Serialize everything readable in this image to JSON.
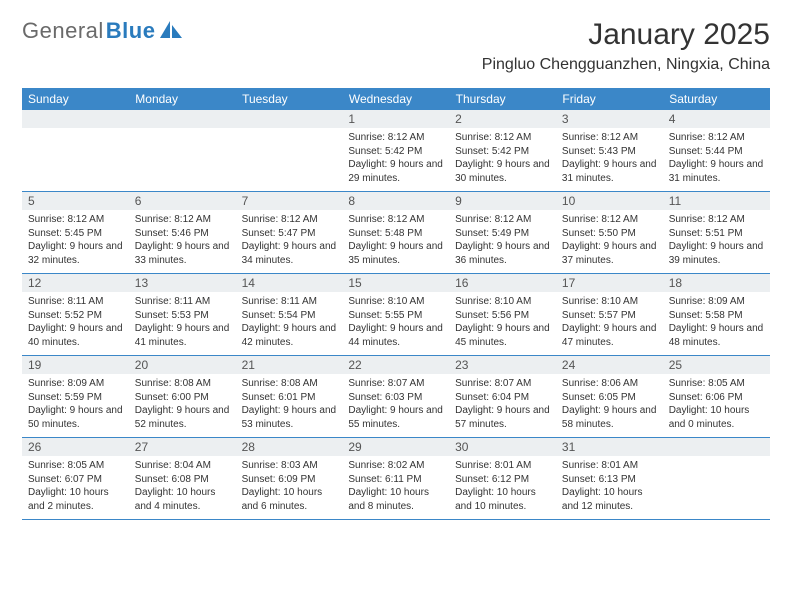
{
  "logo": {
    "text1": "General",
    "text2": "Blue"
  },
  "title": "January 2025",
  "location": "Pingluo Chengguanzhen, Ningxia, China",
  "colors": {
    "header_bg": "#3b87c8",
    "header_text": "#ffffff",
    "daynum_bg": "#eceff1",
    "border": "#3b87c8",
    "logo_gray": "#6a6a6a",
    "logo_blue": "#2a7bbd"
  },
  "fonts": {
    "title_size": 30,
    "location_size": 16,
    "header_size": 12,
    "daynum_size": 12,
    "body_size": 10
  },
  "weekdays": [
    "Sunday",
    "Monday",
    "Tuesday",
    "Wednesday",
    "Thursday",
    "Friday",
    "Saturday"
  ],
  "weeks": [
    [
      {
        "n": "",
        "t": ""
      },
      {
        "n": "",
        "t": ""
      },
      {
        "n": "",
        "t": ""
      },
      {
        "n": "1",
        "t": "Sunrise: 8:12 AM\nSunset: 5:42 PM\nDaylight: 9 hours and 29 minutes."
      },
      {
        "n": "2",
        "t": "Sunrise: 8:12 AM\nSunset: 5:42 PM\nDaylight: 9 hours and 30 minutes."
      },
      {
        "n": "3",
        "t": "Sunrise: 8:12 AM\nSunset: 5:43 PM\nDaylight: 9 hours and 31 minutes."
      },
      {
        "n": "4",
        "t": "Sunrise: 8:12 AM\nSunset: 5:44 PM\nDaylight: 9 hours and 31 minutes."
      }
    ],
    [
      {
        "n": "5",
        "t": "Sunrise: 8:12 AM\nSunset: 5:45 PM\nDaylight: 9 hours and 32 minutes."
      },
      {
        "n": "6",
        "t": "Sunrise: 8:12 AM\nSunset: 5:46 PM\nDaylight: 9 hours and 33 minutes."
      },
      {
        "n": "7",
        "t": "Sunrise: 8:12 AM\nSunset: 5:47 PM\nDaylight: 9 hours and 34 minutes."
      },
      {
        "n": "8",
        "t": "Sunrise: 8:12 AM\nSunset: 5:48 PM\nDaylight: 9 hours and 35 minutes."
      },
      {
        "n": "9",
        "t": "Sunrise: 8:12 AM\nSunset: 5:49 PM\nDaylight: 9 hours and 36 minutes."
      },
      {
        "n": "10",
        "t": "Sunrise: 8:12 AM\nSunset: 5:50 PM\nDaylight: 9 hours and 37 minutes."
      },
      {
        "n": "11",
        "t": "Sunrise: 8:12 AM\nSunset: 5:51 PM\nDaylight: 9 hours and 39 minutes."
      }
    ],
    [
      {
        "n": "12",
        "t": "Sunrise: 8:11 AM\nSunset: 5:52 PM\nDaylight: 9 hours and 40 minutes."
      },
      {
        "n": "13",
        "t": "Sunrise: 8:11 AM\nSunset: 5:53 PM\nDaylight: 9 hours and 41 minutes."
      },
      {
        "n": "14",
        "t": "Sunrise: 8:11 AM\nSunset: 5:54 PM\nDaylight: 9 hours and 42 minutes."
      },
      {
        "n": "15",
        "t": "Sunrise: 8:10 AM\nSunset: 5:55 PM\nDaylight: 9 hours and 44 minutes."
      },
      {
        "n": "16",
        "t": "Sunrise: 8:10 AM\nSunset: 5:56 PM\nDaylight: 9 hours and 45 minutes."
      },
      {
        "n": "17",
        "t": "Sunrise: 8:10 AM\nSunset: 5:57 PM\nDaylight: 9 hours and 47 minutes."
      },
      {
        "n": "18",
        "t": "Sunrise: 8:09 AM\nSunset: 5:58 PM\nDaylight: 9 hours and 48 minutes."
      }
    ],
    [
      {
        "n": "19",
        "t": "Sunrise: 8:09 AM\nSunset: 5:59 PM\nDaylight: 9 hours and 50 minutes."
      },
      {
        "n": "20",
        "t": "Sunrise: 8:08 AM\nSunset: 6:00 PM\nDaylight: 9 hours and 52 minutes."
      },
      {
        "n": "21",
        "t": "Sunrise: 8:08 AM\nSunset: 6:01 PM\nDaylight: 9 hours and 53 minutes."
      },
      {
        "n": "22",
        "t": "Sunrise: 8:07 AM\nSunset: 6:03 PM\nDaylight: 9 hours and 55 minutes."
      },
      {
        "n": "23",
        "t": "Sunrise: 8:07 AM\nSunset: 6:04 PM\nDaylight: 9 hours and 57 minutes."
      },
      {
        "n": "24",
        "t": "Sunrise: 8:06 AM\nSunset: 6:05 PM\nDaylight: 9 hours and 58 minutes."
      },
      {
        "n": "25",
        "t": "Sunrise: 8:05 AM\nSunset: 6:06 PM\nDaylight: 10 hours and 0 minutes."
      }
    ],
    [
      {
        "n": "26",
        "t": "Sunrise: 8:05 AM\nSunset: 6:07 PM\nDaylight: 10 hours and 2 minutes."
      },
      {
        "n": "27",
        "t": "Sunrise: 8:04 AM\nSunset: 6:08 PM\nDaylight: 10 hours and 4 minutes."
      },
      {
        "n": "28",
        "t": "Sunrise: 8:03 AM\nSunset: 6:09 PM\nDaylight: 10 hours and 6 minutes."
      },
      {
        "n": "29",
        "t": "Sunrise: 8:02 AM\nSunset: 6:11 PM\nDaylight: 10 hours and 8 minutes."
      },
      {
        "n": "30",
        "t": "Sunrise: 8:01 AM\nSunset: 6:12 PM\nDaylight: 10 hours and 10 minutes."
      },
      {
        "n": "31",
        "t": "Sunrise: 8:01 AM\nSunset: 6:13 PM\nDaylight: 10 hours and 12 minutes."
      },
      {
        "n": "",
        "t": ""
      }
    ]
  ]
}
